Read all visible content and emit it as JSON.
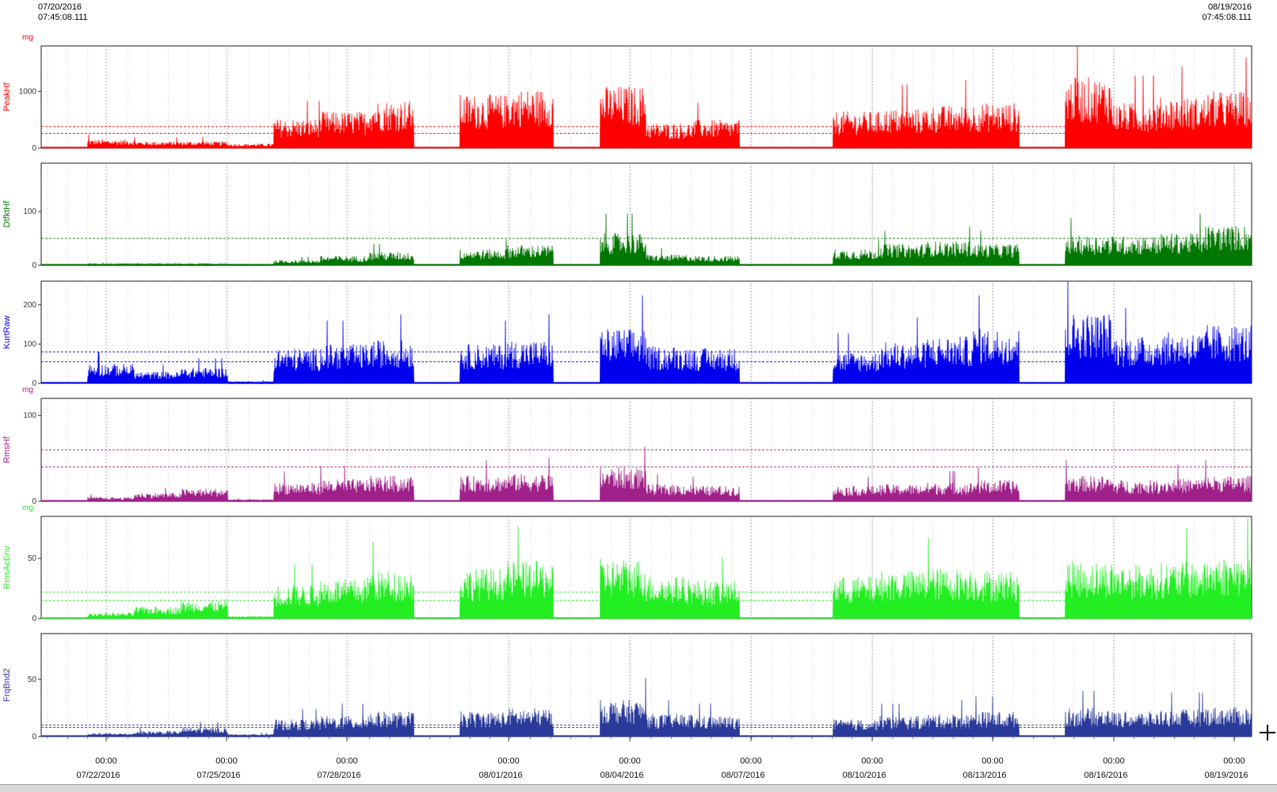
{
  "header": {
    "start_date": "07/20/2016",
    "start_time": "07:45:08.111",
    "end_date": "08/19/2016",
    "end_time": "07:45:08.111"
  },
  "chart_data": {
    "type": "area",
    "x_range": [
      "07/20/2016 07:45:08.111",
      "08/19/2016 07:45:08.111"
    ],
    "x_ticks": [
      {
        "time": "00:00",
        "date": "07/22/2016"
      },
      {
        "time": "00:00",
        "date": "07/25/2016"
      },
      {
        "time": "00:00",
        "date": "07/28/2016"
      },
      {
        "time": "00:00",
        "date": "08/01/2016"
      },
      {
        "time": "00:00",
        "date": "08/04/2016"
      },
      {
        "time": "00:00",
        "date": "08/07/2016"
      },
      {
        "time": "00:00",
        "date": "08/10/2016"
      },
      {
        "time": "00:00",
        "date": "08/13/2016"
      },
      {
        "time": "00:00",
        "date": "08/16/2016"
      },
      {
        "time": "00:00",
        "date": "08/19/2016"
      }
    ],
    "panels": [
      {
        "name": "PeakHf",
        "unit": "mg",
        "color": "#ff0000",
        "ylim": [
          0,
          1800
        ],
        "yticks": [
          0,
          1000
        ],
        "thresholds": [
          260,
          380
        ],
        "level": [
          0,
          150,
          120,
          120,
          80,
          520,
          650,
          850,
          0,
          950,
          1050,
          0,
          1100,
          450,
          500,
          0,
          0,
          650,
          700,
          750,
          800,
          0,
          1250,
          800,
          900,
          1000
        ]
      },
      {
        "name": "DtfktHf",
        "unit": "",
        "color": "#007700",
        "ylim": [
          0,
          190
        ],
        "yticks": [
          0,
          100
        ],
        "thresholds": [
          50
        ],
        "level": [
          0,
          3,
          3,
          3,
          2,
          10,
          18,
          25,
          0,
          30,
          38,
          0,
          60,
          20,
          18,
          0,
          0,
          30,
          40,
          45,
          40,
          0,
          55,
          55,
          60,
          75
        ]
      },
      {
        "name": "KurtRaw",
        "unit": "",
        "color": "#0000ee",
        "ylim": [
          0,
          260
        ],
        "yticks": [
          0,
          100,
          200
        ],
        "thresholds": [
          55,
          80
        ],
        "level": [
          0,
          50,
          30,
          40,
          5,
          90,
          100,
          110,
          0,
          100,
          110,
          0,
          140,
          95,
          90,
          0,
          0,
          80,
          105,
          120,
          140,
          0,
          180,
          120,
          130,
          150
        ]
      },
      {
        "name": "RmsHf",
        "unit": "mg",
        "color": "#a0208a",
        "ylim": [
          0,
          120
        ],
        "yticks": [
          0,
          100
        ],
        "thresholds": [
          40,
          60
        ],
        "level": [
          0,
          5,
          10,
          15,
          2,
          22,
          26,
          30,
          0,
          30,
          32,
          0,
          40,
          20,
          18,
          0,
          0,
          18,
          20,
          22,
          25,
          0,
          30,
          25,
          27,
          30
        ]
      },
      {
        "name": "RmsAcEnv",
        "unit": "mg",
        "color": "#22ee22",
        "ylim": [
          0,
          85
        ],
        "yticks": [
          0,
          50
        ],
        "thresholds": [
          15,
          22
        ],
        "level": [
          0,
          5,
          10,
          15,
          2,
          28,
          33,
          40,
          0,
          42,
          48,
          0,
          50,
          35,
          32,
          0,
          0,
          35,
          40,
          42,
          40,
          0,
          48,
          45,
          47,
          52
        ]
      },
      {
        "name": "FrqBnd2",
        "unit": "",
        "color": "#2a3a9a",
        "ylim": [
          0,
          90
        ],
        "yticks": [
          0,
          50
        ],
        "thresholds": [
          8,
          10
        ],
        "level": [
          0,
          3,
          5,
          8,
          2,
          15,
          18,
          22,
          0,
          22,
          25,
          0,
          32,
          20,
          18,
          0,
          0,
          15,
          18,
          20,
          22,
          0,
          25,
          22,
          24,
          26
        ]
      }
    ]
  }
}
